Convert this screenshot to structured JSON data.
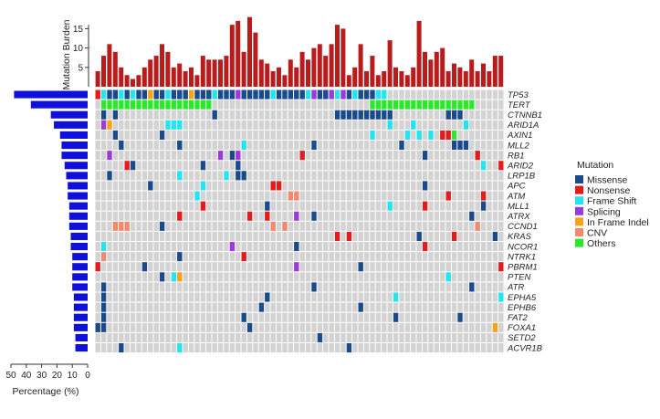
{
  "chart_data": {
    "type": "heatmap",
    "title": "",
    "n_samples": 70,
    "genes": [
      "TP53",
      "TERT",
      "CTNNB1",
      "ARID1A",
      "AXIN1",
      "MLL2",
      "RB1",
      "ARID2",
      "LRP1B",
      "APC",
      "ATM",
      "MLL1",
      "ATRX",
      "CCND1",
      "KRAS",
      "NCOR1",
      "NTRK1",
      "PBRM1",
      "PTEN",
      "ATR",
      "EPHA5",
      "EPHB6",
      "FAT2",
      "FOXA1",
      "SETD2",
      "ACVR1B"
    ],
    "gene_percentages": [
      48,
      37,
      24,
      22,
      18,
      17,
      17,
      15,
      14,
      13,
      13,
      12,
      12,
      12,
      11,
      11,
      10,
      10,
      10,
      10,
      9,
      9,
      9,
      9,
      8,
      8
    ],
    "left_axis": {
      "title": "Percentage (%)",
      "ticks": [
        50,
        40,
        30,
        20,
        10,
        0
      ],
      "range": [
        50,
        0
      ]
    },
    "top_axis": {
      "title": "Mutation Burden",
      "ticks": [
        5,
        10,
        15
      ],
      "range": [
        0,
        18
      ]
    },
    "mutation_burden": [
      4,
      8,
      11,
      9,
      5,
      3,
      2,
      3,
      5,
      7,
      8,
      11,
      9,
      5,
      6,
      4,
      5,
      3,
      8,
      7,
      7,
      7,
      8,
      16,
      17,
      9,
      18,
      14,
      7,
      6,
      4,
      5,
      3,
      7,
      5,
      9,
      7,
      10,
      11,
      8,
      11,
      16,
      15,
      3,
      5,
      11,
      4,
      8,
      3,
      4,
      12,
      5,
      4,
      3,
      5,
      17,
      9,
      7,
      9,
      10,
      4,
      6,
      5,
      4,
      7,
      4,
      6,
      4,
      8,
      8
    ],
    "legend": {
      "title": "Mutation",
      "entries": [
        {
          "code": "M",
          "label": "Missense",
          "color": "#1a4a8a"
        },
        {
          "code": "N",
          "label": "Nonsense",
          "color": "#e41a1c"
        },
        {
          "code": "F",
          "label": "Frame Shift",
          "color": "#25e3f0"
        },
        {
          "code": "S",
          "label": "Splicing",
          "color": "#9a3ad9"
        },
        {
          "code": "I",
          "label": "In Frame Indel",
          "color": "#f7a21b"
        },
        {
          "code": "C",
          "label": "CNV",
          "color": "#f08a6e"
        },
        {
          "code": "O",
          "label": "Others",
          "color": "#2de62d"
        }
      ],
      "placement": "right"
    },
    "colors": {
      "empty_cell": "#d3d3d3",
      "percentage_bar": "#1010dd",
      "burden_bar": "#b81c1c"
    },
    "matrix": {
      "TP53": "NFMMFMFMMIMMFMMMIMMMFMMMSMMMMMFMMMMMFSMMSFSMFMMMFF......................",
      "TERT": ".OOOOOOOOOOOOOOOOOOO...........................OOOOOOOOOOOOOOOOOO.......",
      "CTNNB1": ".M.M................M....................MMMMMMMMMM.........MMM........",
      "ARID1A": ".SI.........FFF...................................F...F........F........",
      "AXIN1": "...M.......M...................................F.....F.F.F.NNO........",
      "MLL2": "....M.........M..........F...........M..............M........MMM.......",
      "RB1": "..S..................S.MS..........N....................M........N.....",
      "ARID2": ".....NM...........M.....M.........................................F..N",
      "LRP1B": "..M...........F.......F.MM.............................................",
      "APC": ".........M........F...........NN........................M..............",
      "ATM": ".................F...............CC.........................N.....N.....",
      "MLL1": "..................N..........M....................F.....N.........M....",
      "ATRX": "..............N...........N..N....S..M..........................M.......",
      "CCND1": "...CCC.....M..................C.C................................C.....",
      "KRAS": ".........................................N.N...........M.....N......M...",
      "NCOR1": ".F.....................S..........M.....................N.............F.",
      "NTRK1": ".C............M..........N..............................................",
      "PBRM1": "N.......M.........................S..........M.......................N..",
      "PTEN": "...........M.FI.............................................F.........",
      "ATR": ".M...................................M..........................M......",
      "EPHA5": ".M...........................M.....................F.................F...",
      "EPHB6": ".M..........................M................M........................",
      "FAT2": ".M.......................M.........................M..........M.........",
      "FOXA1": "MM........................M.........................................I.",
      "SETD2": "......................................M.................................F.",
      "ACVR1B": "....M.........F............................M........................."
    }
  }
}
